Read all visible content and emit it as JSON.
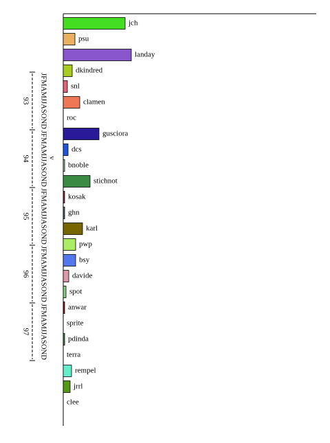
{
  "chart_data": {
    "type": "bar",
    "categories": [
      "jch",
      "psu",
      "landay",
      "dkindred",
      "snl",
      "clamen",
      "roc",
      "gusciora",
      "dcs",
      "bnoble",
      "stichnot",
      "kosak",
      "ghn",
      "karl",
      "pwp",
      "bsy",
      "davide",
      "spot",
      "anwar",
      "sprite",
      "pdinda",
      "terra",
      "rempel",
      "jrrl",
      "clee"
    ],
    "values": [
      90,
      17,
      99,
      13,
      6,
      24,
      0,
      52,
      7,
      2,
      39,
      2,
      2,
      28,
      18,
      18,
      8,
      4,
      2,
      0,
      2,
      0,
      12,
      10,
      0
    ],
    "colors": [
      "#44dd22",
      "#e8b060",
      "#8855cc",
      "#aacc22",
      "#dd6677",
      "#ee7755",
      "#ffffff",
      "#2a1a99",
      "#2255dd",
      "#99cc99",
      "#3a8a44",
      "#883344",
      "#556677",
      "#776600",
      "#aaee66",
      "#5577ee",
      "#dd99aa",
      "#88cc88",
      "#882211",
      "#ffffff",
      "#448844",
      "#ffffff",
      "#66eecc",
      "#559911",
      "#ffffff"
    ],
    "xlim": [
      0,
      368
    ],
    "timeline": {
      "years": [
        "93",
        "94",
        "95",
        "96",
        "97"
      ],
      "months": "JFMAMJJASOND",
      "marker": "v"
    }
  }
}
